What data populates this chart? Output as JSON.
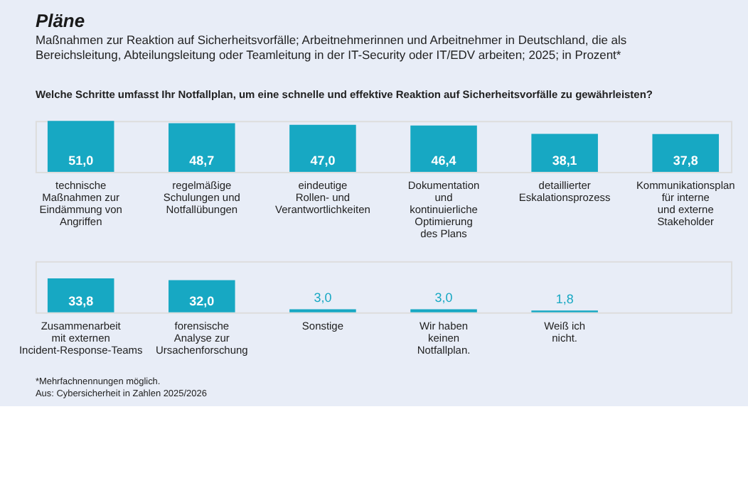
{
  "chart_data": [
    {
      "type": "bar",
      "title": "Pläne",
      "subtitle": "Maßnahmen zur Reaktion auf Sicherheitsvorfälle; Arbeitnehmerinnen und Arbeitnehmer in Deutschland, die als Bereichsleitung, Abteilungsleitung oder Teamleitung in der IT-Security oder IT/EDV arbeiten; 2025; in Prozent*",
      "categories": [
        "technische Maßnahmen zur Eindämmung von Angriffen",
        "regelmäßige Schulungen und Notfallübungen",
        "eindeutige Rollen- und Verantwortlichkeiten",
        "Dokumentation und kontinuierliche Optimierung des Plans",
        "detaillierter Eskalationsprozess",
        "Kommunikationsplan für interne und externe Stakeholder"
      ],
      "values": [
        51.0,
        48.7,
        47.0,
        46.4,
        38.1,
        37.8
      ],
      "value_labels": [
        "51,0",
        "48,7",
        "47,0",
        "46,4",
        "38,1",
        "37,8"
      ],
      "color": "#17a8c3",
      "annotations": [
        "Welche Schritte umfasst Ihr Notfallplan, um eine schnelle und effektive Reaktion auf Sicherheitsvorfälle zu gewährleisten?"
      ]
    },
    {
      "type": "bar",
      "categories": [
        "Zusammenarbeit mit externen Incident-Response-Teams",
        "forensische Analyse zur Ursachenforschung",
        "Sonstige",
        "Wir haben keinen Notfallplan.",
        "Weiß ich nicht."
      ],
      "values": [
        33.8,
        32.0,
        3.0,
        3.0,
        1.8
      ],
      "value_labels": [
        "33,8",
        "32,0",
        "3,0",
        "3,0",
        "1,8"
      ],
      "color": "#17a8c3",
      "annotations": [
        "*Mehrfachnennungen möglich.",
        "Aus: Cybersicherheit in Zahlen 2025/2026"
      ]
    }
  ]
}
